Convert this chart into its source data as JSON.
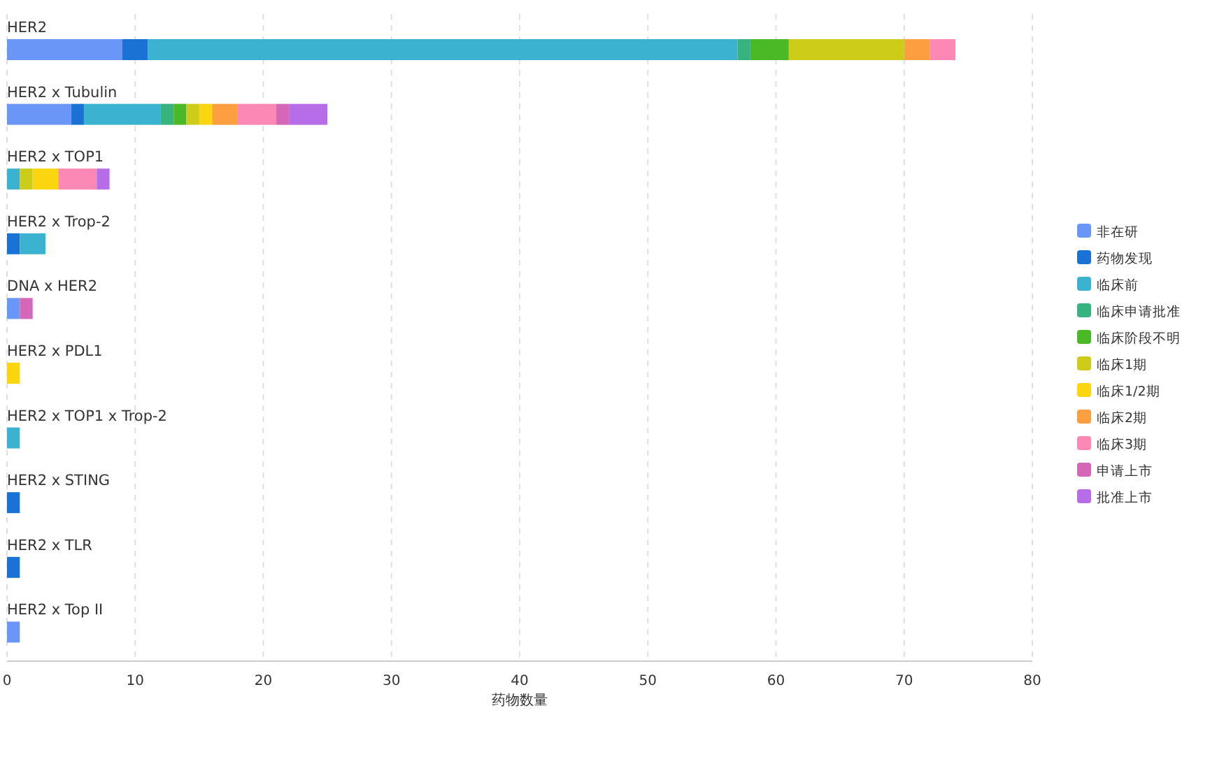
{
  "chart_data": {
    "type": "bar",
    "orientation": "horizontal",
    "stacked": true,
    "xlabel": "药物数量",
    "categories": [
      "HER2",
      "HER2 x Tubulin",
      "HER2 x TOP1",
      "HER2 x Trop-2",
      "DNA x HER2",
      "HER2 x PDL1",
      "HER2 x TOP1 x Trop-2",
      "HER2 x STING",
      "HER2 x TLR",
      "HER2 x Top II"
    ],
    "series": [
      {
        "name": "非在研",
        "color": "#6a96f7",
        "values": [
          9,
          5,
          0,
          0,
          1,
          0,
          0,
          0,
          0,
          1
        ]
      },
      {
        "name": "药物发现",
        "color": "#1a73d4",
        "values": [
          2,
          1,
          0,
          1,
          0,
          0,
          0,
          1,
          1,
          0
        ]
      },
      {
        "name": "临床前",
        "color": "#3bb3d0",
        "values": [
          46,
          6,
          1,
          2,
          0,
          0,
          1,
          0,
          0,
          0
        ]
      },
      {
        "name": "临床申请批准",
        "color": "#36b37e",
        "values": [
          1,
          1,
          0,
          0,
          0,
          0,
          0,
          0,
          0,
          0
        ]
      },
      {
        "name": "临床阶段不明",
        "color": "#4bb825",
        "values": [
          3,
          1,
          0,
          0,
          0,
          0,
          0,
          0,
          0,
          0
        ]
      },
      {
        "name": "临床1期",
        "color": "#cdcc19",
        "values": [
          9,
          1,
          1,
          0,
          0,
          0,
          0,
          0,
          0,
          0
        ]
      },
      {
        "name": "临床1/2期",
        "color": "#fbd50f",
        "values": [
          0,
          1,
          2,
          0,
          0,
          1,
          0,
          0,
          0,
          0
        ]
      },
      {
        "name": "临床2期",
        "color": "#fd9f40",
        "values": [
          2,
          2,
          0,
          0,
          0,
          0,
          0,
          0,
          0,
          0
        ]
      },
      {
        "name": "临床3期",
        "color": "#fc88b6",
        "values": [
          2,
          3,
          3,
          0,
          0,
          0,
          0,
          0,
          0,
          0
        ]
      },
      {
        "name": "申请上市",
        "color": "#d467b8",
        "values": [
          0,
          1,
          0,
          0,
          1,
          0,
          0,
          0,
          0,
          0
        ]
      },
      {
        "name": "批准上市",
        "color": "#b86de8",
        "values": [
          0,
          3,
          1,
          0,
          0,
          0,
          0,
          0,
          0,
          0
        ]
      }
    ],
    "xlim": [
      0,
      80
    ],
    "xticks": [
      0,
      10,
      20,
      30,
      40,
      50,
      60,
      70,
      80
    ],
    "grid": "x",
    "legend": "right"
  }
}
